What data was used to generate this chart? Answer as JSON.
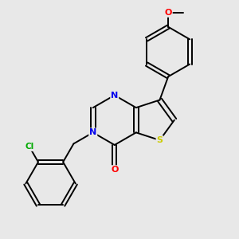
{
  "background_color": "#e8e8e8",
  "bond_color": "#000000",
  "atom_colors": {
    "N": "#0000ee",
    "O": "#ff0000",
    "S": "#cccc00",
    "Cl": "#00aa00",
    "C": "#000000"
  },
  "figsize": [
    3.0,
    3.0
  ],
  "dpi": 100,
  "xlim": [
    0,
    10
  ],
  "ylim": [
    0,
    10
  ]
}
